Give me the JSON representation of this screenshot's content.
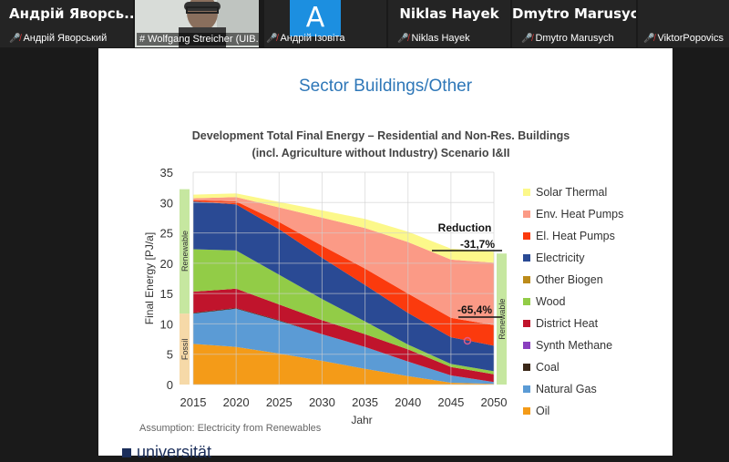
{
  "participants": [
    {
      "display": "Андрій Яворсь...",
      "caption": "Андрій Яворський",
      "muted": true
    },
    {
      "display": "",
      "caption": "# Wolfgang Streicher (UIB...",
      "muted": false,
      "video": true
    },
    {
      "display": "A",
      "caption": "Андрій Ізовіта",
      "muted": true
    },
    {
      "display": "Niklas Hayek",
      "caption": "Niklas Hayek",
      "muted": true
    },
    {
      "display": "Dmytro Marusych",
      "caption": "Dmytro Marusych",
      "muted": true
    },
    {
      "display": "",
      "caption": "ViktorPopovics",
      "muted": true
    }
  ],
  "slide": {
    "title": "Sector Buildings/Other",
    "chart_title_line1": "Development Total Final Energy – Residential and Non-Res. Buildings",
    "chart_title_line2": "(incl. Agriculture without Industry) Scenario I&II",
    "footnote": "Assumption: Electricity from Renewables",
    "logo_text": "universität"
  },
  "chart_data": {
    "type": "area",
    "stacked": true,
    "x": [
      2015,
      2020,
      2025,
      2030,
      2035,
      2040,
      2045,
      2050
    ],
    "xlabel": "Jahr",
    "ylabel": "Final Energy [PJ/a]",
    "ylim": [
      0,
      35
    ],
    "yticks": [
      0,
      5,
      10,
      15,
      20,
      25,
      30,
      35
    ],
    "grid": true,
    "legend_position": "right",
    "series": [
      {
        "name": "Oil",
        "color": "#f49b18",
        "values": [
          6.7,
          6.2,
          5.1,
          3.9,
          2.6,
          1.4,
          0.3,
          0.1
        ]
      },
      {
        "name": "Natural Gas",
        "color": "#5b9bd5",
        "values": [
          5.0,
          6.3,
          5.4,
          4.4,
          3.6,
          2.4,
          1.2,
          0.3
        ]
      },
      {
        "name": "Coal",
        "color": "#3a2718",
        "values": [
          0.1,
          0.1,
          0.1,
          0.0,
          0.0,
          0.0,
          0.0,
          0.0
        ]
      },
      {
        "name": "Synth Methane",
        "color": "#8a3fbf",
        "values": [
          0.0,
          0.0,
          0.0,
          0.0,
          0.0,
          0.0,
          0.0,
          0.0
        ]
      },
      {
        "name": "District Heat",
        "color": "#c0142c",
        "values": [
          3.5,
          3.2,
          2.6,
          2.3,
          2.1,
          2.0,
          1.4,
          1.3
        ]
      },
      {
        "name": "Wood",
        "color": "#92cc47",
        "values": [
          7.0,
          6.3,
          4.9,
          3.5,
          2.1,
          0.8,
          0.5,
          0.5
        ]
      },
      {
        "name": "Other Biogen",
        "color": "#bc8b1a",
        "values": [
          0.0,
          0.0,
          0.0,
          0.0,
          0.0,
          0.0,
          0.0,
          0.0
        ]
      },
      {
        "name": "Electricity",
        "color": "#2a4a94",
        "values": [
          7.9,
          7.6,
          7.5,
          6.8,
          6.0,
          5.2,
          4.4,
          4.2
        ]
      },
      {
        "name": "El. Heat Pumps",
        "color": "#fb3a0d",
        "values": [
          0.2,
          0.5,
          1.2,
          2.0,
          2.7,
          3.2,
          3.2,
          3.4
        ]
      },
      {
        "name": "Env. Heat Pumps",
        "color": "#fb9a86",
        "values": [
          0.3,
          0.7,
          2.4,
          4.6,
          6.7,
          8.5,
          9.6,
          10.3
        ]
      },
      {
        "name": "Solar Thermal",
        "color": "#fcf88a",
        "values": [
          0.6,
          0.6,
          0.9,
          1.2,
          1.5,
          1.7,
          1.8,
          1.8
        ]
      }
    ],
    "legend_order": [
      "Solar Thermal",
      "Env. Heat Pumps",
      "El. Heat Pumps",
      "Electricity",
      "Other Biogen",
      "Wood",
      "District Heat",
      "Synth Methane",
      "Coal",
      "Natural Gas",
      "Oil"
    ],
    "side_bars": {
      "left_fossil_label": "Fossil",
      "left_renewable_label": "Renewable",
      "right_renewable_label": "Renewable"
    },
    "annotations": {
      "reduction_label": "Reduction",
      "reduction_value": "-31,7%",
      "renewable_reduction": "-65,4%"
    }
  }
}
